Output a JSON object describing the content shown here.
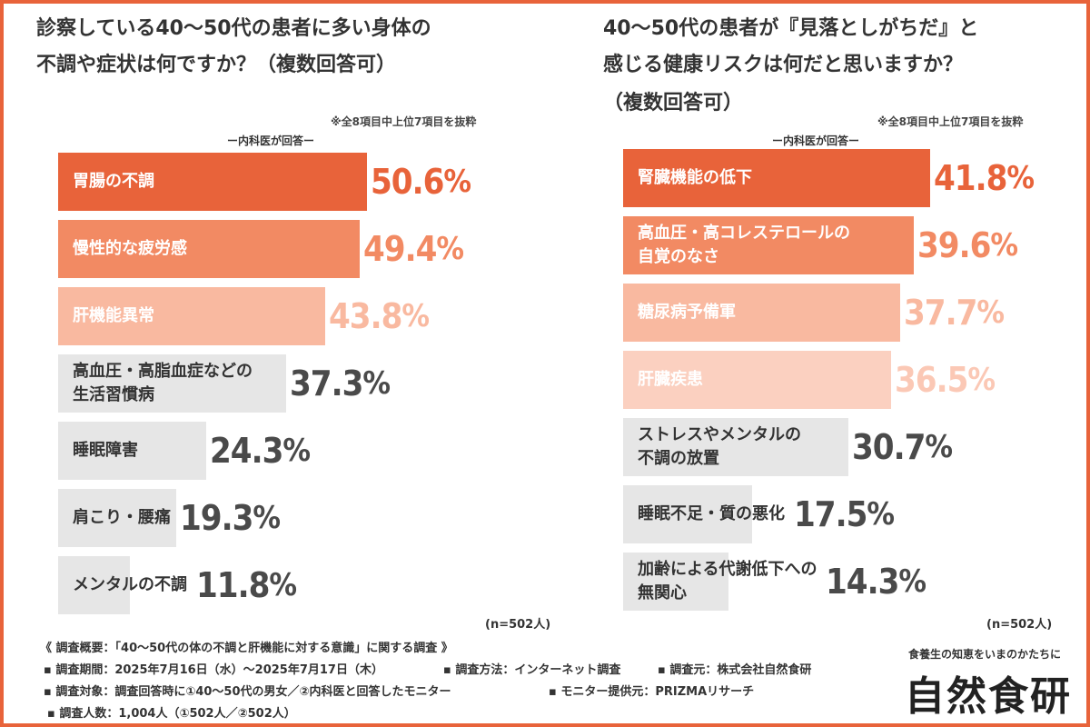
{
  "left": {
    "title_line1": "診察している40〜50代の患者に多い身体の",
    "title_line2": "不調や症状は何ですか？（複数回答可）",
    "note": "※全8項目中上位7項目を抜粋",
    "subtitle": "ー内科医が回答ー",
    "n": "(n=502人)"
  },
  "right": {
    "title_line1": "40〜50代の患者が『見落としがちだ』と",
    "title_line2": "感じる健康リスクは何だと思いますか？",
    "title_line3": "（複数回答可）",
    "note": "※全8項目中上位7項目を抜粋",
    "subtitle": "ー内科医が回答ー",
    "n": "(n=502人)"
  },
  "chart_data": [
    {
      "type": "bar",
      "orientation": "horizontal",
      "title": "診察している40〜50代の患者に多い身体の不調や症状は何ですか？（複数回答可）",
      "categories": [
        "胃腸の不調",
        "慢性的な疲労感",
        "肝機能異常",
        "高血圧・高脂血症などの\n生活習慣病",
        "睡眠障害",
        "肩こり・腰痛",
        "メンタルの不調"
      ],
      "values": [
        50.6,
        49.4,
        43.8,
        37.3,
        24.3,
        19.3,
        11.8
      ],
      "unit": "%",
      "bar_colors": [
        "#e8633a",
        "#f28a63",
        "#f9b9a0",
        "#e6e6e6",
        "#e6e6e6",
        "#e6e6e6",
        "#e6e6e6"
      ],
      "label_colors": [
        "#ffffff",
        "#ffffff",
        "#ffffff",
        "#333333",
        "#333333",
        "#333333",
        "#333333"
      ],
      "value_colors": [
        "#e8633a",
        "#f28a63",
        "#f9b9a0",
        "#4a4a4a",
        "#4a4a4a",
        "#4a4a4a",
        "#4a4a4a"
      ]
    },
    {
      "type": "bar",
      "orientation": "horizontal",
      "title": "40〜50代の患者が『見落としがちだ』と感じる健康リスクは何だと思いますか？（複数回答可）",
      "categories": [
        "腎臓機能の低下",
        "高血圧・高コレステロールの\n自覚のなさ",
        "糖尿病予備軍",
        "肝臓疾患",
        "ストレスやメンタルの\n不調の放置",
        "睡眠不足・質の悪化",
        "加齢による代謝低下への\n無関心"
      ],
      "values": [
        41.8,
        39.6,
        37.7,
        36.5,
        30.7,
        17.5,
        14.3
      ],
      "unit": "%",
      "bar_colors": [
        "#e8633a",
        "#f28a63",
        "#f9b9a0",
        "#fbd0c0",
        "#e6e6e6",
        "#e6e6e6",
        "#e6e6e6"
      ],
      "label_colors": [
        "#ffffff",
        "#ffffff",
        "#ffffff",
        "#ffffff",
        "#333333",
        "#333333",
        "#333333"
      ],
      "value_colors": [
        "#e8633a",
        "#f28a63",
        "#f9b9a0",
        "#fbc8b5",
        "#4a4a4a",
        "#4a4a4a",
        "#4a4a4a"
      ]
    }
  ],
  "footer": {
    "line1": "《 調査概要：「40〜50代の体の不調と肝機能に対する意識」に関する調査 》",
    "line2a": "▪ 調査期間：2025年7月16日（水）〜2025年7月17日（木）",
    "line2b": "▪ 調査方法：インターネット調査",
    "line2c": "▪ 調査元：株式会社自然食研",
    "line3a": "▪ 調査対象：調査回答時に①40〜50代の男女／②内科医と回答したモニター",
    "line3b": "▪ モニター提供元：PRIZMAリサーチ",
    "line4": "▪ 調査人数：1,004人（①502人／②502人）"
  },
  "brand": {
    "tagline": "食養生の知恵をいまのかたちに",
    "name": "自然食研"
  },
  "colors": {
    "accent": "#e8633a",
    "border": "#e8633a"
  }
}
